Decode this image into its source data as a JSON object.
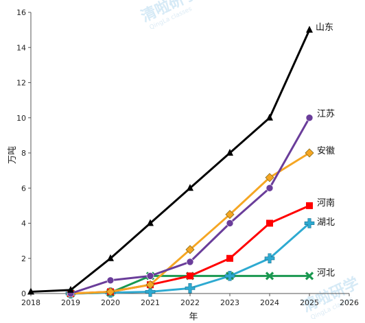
{
  "watermark": {
    "text": "清啦研学",
    "sub": "QingLa classes"
  },
  "chart_data": {
    "type": "line",
    "xlabel": "年",
    "ylabel": "万吨",
    "xlim": [
      2018,
      2026
    ],
    "ylim": [
      0,
      16
    ],
    "xticks": [
      "2018",
      "2019",
      "2020",
      "2021",
      "2022",
      "2023",
      "2024",
      "2025",
      "2026"
    ],
    "yticks": [
      "0",
      "2",
      "4",
      "6",
      "8",
      "10",
      "12",
      "14",
      "16"
    ],
    "grid": false,
    "series": [
      {
        "name": "山东",
        "color": "#000000",
        "marker": "triangle",
        "x": [
          2018,
          2019,
          2020,
          2021,
          2022,
          2023,
          2024,
          2025
        ],
        "y": [
          0.1,
          0.2,
          2,
          4,
          6,
          8,
          10,
          15
        ]
      },
      {
        "name": "江苏",
        "color": "#6a3d9a",
        "marker": "circle",
        "x": [
          2019,
          2020,
          2021,
          2022,
          2023,
          2024,
          2025
        ],
        "y": [
          0,
          0.75,
          1,
          1.8,
          4,
          6,
          10
        ]
      },
      {
        "name": "安徽",
        "color": "#f5a623",
        "marker": "diamond",
        "x": [
          2019,
          2020,
          2021,
          2022,
          2023,
          2024,
          2025
        ],
        "y": [
          0,
          0.1,
          0.5,
          2.5,
          4.5,
          6.6,
          8
        ]
      },
      {
        "name": "河南",
        "color": "#ff0000",
        "marker": "square",
        "x": [
          2019,
          2020,
          2021,
          2022,
          2023,
          2024,
          2025
        ],
        "y": [
          0,
          0.1,
          0.5,
          1,
          2,
          4,
          5
        ]
      },
      {
        "name": "湖北",
        "color": "#2eaad1",
        "marker": "plus",
        "x": [
          2019,
          2020,
          2021,
          2022,
          2023,
          2024,
          2025
        ],
        "y": [
          0,
          0.05,
          0.1,
          0.3,
          1,
          2,
          4
        ]
      },
      {
        "name": "河北",
        "color": "#1a9850",
        "marker": "x",
        "x": [
          2019,
          2020,
          2021,
          2022,
          2023,
          2024,
          2025
        ],
        "y": [
          0,
          0.05,
          1,
          1,
          1,
          1,
          1
        ]
      }
    ]
  }
}
